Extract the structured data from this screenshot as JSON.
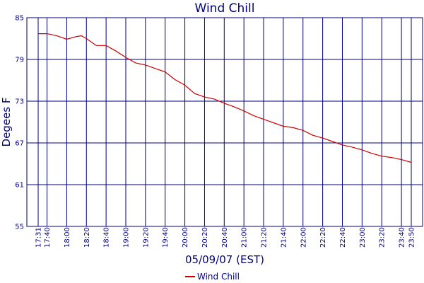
{
  "chart_data": {
    "type": "line",
    "title": "Wind Chill",
    "xlabel": "05/09/07 (EST)",
    "ylabel": "Degees F",
    "ylim": [
      55,
      85
    ],
    "yticks": [
      "55",
      "61",
      "67",
      "73",
      "79",
      "85"
    ],
    "x_start": "17:31",
    "x_end": "23:50",
    "xticks": [
      "17:31",
      "17:40",
      "18:00",
      "18:20",
      "18:40",
      "19:00",
      "19:20",
      "19:40",
      "20:00",
      "20:20",
      "20:40",
      "21:00",
      "21:20",
      "21:40",
      "22:00",
      "22:20",
      "22:40",
      "23:00",
      "23:20",
      "23:40",
      "23:50"
    ],
    "grid": true,
    "legend_position": "bottom-center",
    "colors": {
      "series": "#cc0000",
      "grid": "#000080",
      "text": "#000080"
    },
    "series": [
      {
        "name": "Wind Chill",
        "x": [
          "17:31",
          "17:40",
          "17:50",
          "18:00",
          "18:10",
          "18:15",
          "18:20",
          "18:30",
          "18:40",
          "18:50",
          "19:00",
          "19:10",
          "19:20",
          "19:30",
          "19:40",
          "19:50",
          "20:00",
          "20:10",
          "20:20",
          "20:30",
          "20:40",
          "20:50",
          "21:00",
          "21:10",
          "21:20",
          "21:30",
          "21:40",
          "21:50",
          "22:00",
          "22:10",
          "22:20",
          "22:30",
          "22:40",
          "22:50",
          "23:00",
          "23:10",
          "23:20",
          "23:30",
          "23:40",
          "23:50"
        ],
        "values": [
          82.7,
          82.7,
          82.4,
          81.9,
          82.3,
          82.4,
          82.0,
          81.0,
          81.0,
          80.2,
          79.3,
          78.5,
          78.2,
          77.7,
          77.2,
          76.1,
          75.3,
          74.1,
          73.6,
          73.3,
          72.7,
          72.2,
          71.6,
          70.9,
          70.4,
          69.9,
          69.4,
          69.2,
          68.8,
          68.1,
          67.7,
          67.2,
          66.7,
          66.4,
          66.0,
          65.5,
          65.1,
          64.9,
          64.6,
          64.2
        ]
      }
    ]
  }
}
